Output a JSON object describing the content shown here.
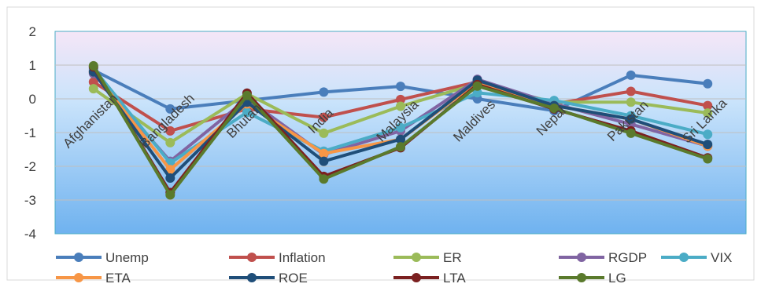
{
  "chart_data": {
    "type": "line",
    "title": "",
    "xlabel": "",
    "ylabel": "",
    "categories": [
      "Afghanistan",
      "Bangladesh",
      "Bhutan",
      "India",
      "Malaysia",
      "Maldives",
      "Nepal",
      "Pakistan",
      "Sri Lanka"
    ],
    "ylim": [
      -4,
      2
    ],
    "yticks": [
      2,
      1,
      0,
      -1,
      -2,
      -3,
      -4
    ],
    "grid": true,
    "legend_position": "bottom",
    "series": [
      {
        "name": "Unemp",
        "color": "#4a7ebb",
        "values": [
          0.85,
          -0.3,
          -0.05,
          0.2,
          0.37,
          0.0,
          -0.35,
          0.7,
          0.45
        ]
      },
      {
        "name": "Inflation",
        "color": "#c0504d",
        "values": [
          0.5,
          -0.95,
          -0.3,
          -0.55,
          -0.02,
          0.5,
          -0.15,
          0.22,
          -0.2
        ]
      },
      {
        "name": "ER",
        "color": "#9bbb59",
        "values": [
          0.3,
          -1.3,
          0.15,
          -1.02,
          -0.22,
          0.45,
          -0.1,
          -0.1,
          -0.42
        ]
      },
      {
        "name": "RGDP",
        "color": "#8064a2",
        "values": [
          0.75,
          -1.85,
          0.0,
          -1.65,
          -0.95,
          0.58,
          -0.15,
          -0.75,
          -1.4
        ]
      },
      {
        "name": "VIX",
        "color": "#4bacc6",
        "values": [
          0.9,
          -1.9,
          -0.4,
          -1.55,
          -0.85,
          0.18,
          -0.05,
          -0.5,
          -1.05
        ]
      },
      {
        "name": "ETA",
        "color": "#f79646",
        "values": [
          0.8,
          -2.1,
          -0.15,
          -1.62,
          -1.2,
          0.5,
          -0.2,
          -0.6,
          -1.4
        ]
      },
      {
        "name": "ROE",
        "color": "#1f4e79",
        "values": [
          0.8,
          -2.35,
          -0.1,
          -1.85,
          -1.2,
          0.55,
          -0.2,
          -0.6,
          -1.35
        ]
      },
      {
        "name": "LTA",
        "color": "#7b2020",
        "values": [
          0.95,
          -2.78,
          0.17,
          -2.3,
          -1.45,
          0.42,
          -0.3,
          -0.95,
          -1.75
        ]
      },
      {
        "name": "LG",
        "color": "#5a7a2c",
        "values": [
          0.98,
          -2.85,
          0.1,
          -2.38,
          -1.42,
          0.38,
          -0.28,
          -1.02,
          -1.78
        ]
      }
    ]
  }
}
